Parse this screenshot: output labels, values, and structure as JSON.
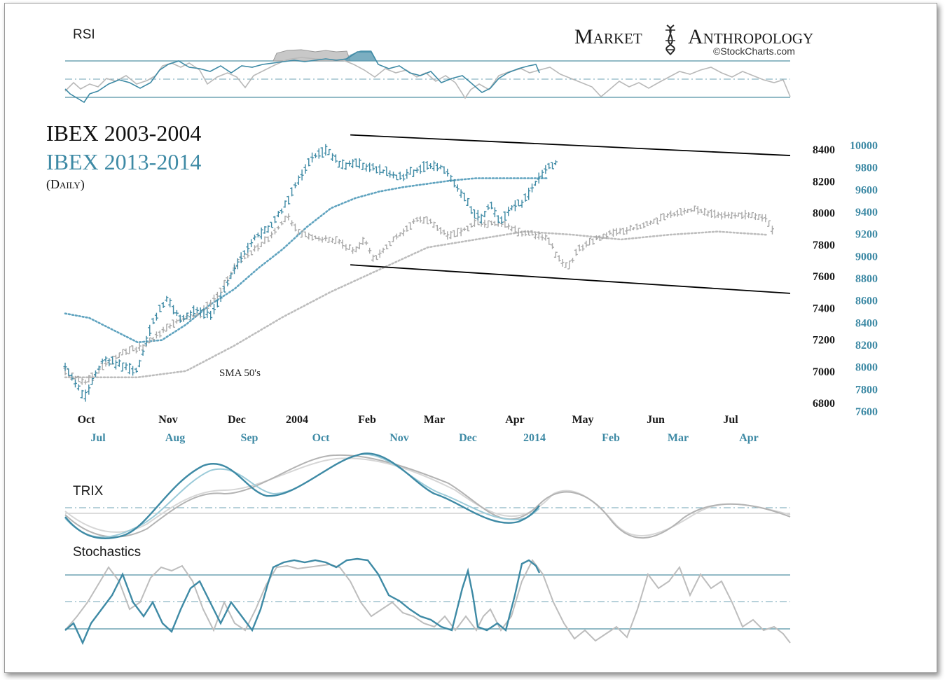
{
  "brand": {
    "name_part1": "Market",
    "name_part2": "Anthropology",
    "source": "©StockCharts.com",
    "icon": "dna-helix-icon"
  },
  "chart_data": {
    "type": "ohlc-overlay",
    "title_line1": "IBEX 2003-2004",
    "title_line2": "IBEX 2013-2014",
    "subtitle": "(Daily)",
    "annotation": "SMA 50's",
    "colors": {
      "series_2003": "#8c8c8c",
      "series_2013": "#3e8aa5",
      "trendline": "#000000",
      "grid": "#6fa3b4"
    },
    "x_axis_2003": [
      "Oct",
      "Nov",
      "Dec",
      "2004",
      "Feb",
      "Mar",
      "Apr",
      "May",
      "Jun",
      "Jul"
    ],
    "x_axis_2013": [
      "Jul",
      "Aug",
      "Sep",
      "Oct",
      "Nov",
      "Dec",
      "2014",
      "Feb",
      "Mar",
      "Apr"
    ],
    "y_axis_2003": [
      8400,
      8200,
      8000,
      7800,
      7600,
      7400,
      7200,
      7000,
      6800
    ],
    "y_axis_2013": [
      10000,
      9800,
      9600,
      9400,
      9200,
      9000,
      8800,
      8600,
      8400,
      8200,
      8000,
      7800,
      7600
    ],
    "series": [
      {
        "period": "2003-2004",
        "axis": "left",
        "close_points": [
          [
            0,
            7000
          ],
          [
            8,
            6920
          ],
          [
            16,
            7030
          ],
          [
            24,
            7120
          ],
          [
            32,
            7150
          ],
          [
            40,
            7250
          ],
          [
            48,
            7330
          ],
          [
            56,
            7360
          ],
          [
            64,
            7500
          ],
          [
            72,
            7700
          ],
          [
            80,
            7780
          ],
          [
            88,
            7900
          ],
          [
            92,
            7990
          ],
          [
            96,
            7880
          ],
          [
            104,
            7840
          ],
          [
            112,
            7820
          ],
          [
            120,
            7760
          ],
          [
            124,
            7830
          ],
          [
            128,
            7700
          ],
          [
            134,
            7800
          ],
          [
            140,
            7880
          ],
          [
            146,
            7960
          ],
          [
            152,
            7940
          ],
          [
            158,
            7850
          ],
          [
            164,
            7880
          ],
          [
            170,
            7940
          ],
          [
            176,
            7930
          ],
          [
            182,
            7920
          ],
          [
            186,
            7890
          ],
          [
            190,
            7870
          ],
          [
            196,
            7860
          ],
          [
            200,
            7830
          ],
          [
            204,
            7710
          ],
          [
            208,
            7650
          ],
          [
            212,
            7760
          ],
          [
            216,
            7800
          ],
          [
            220,
            7840
          ],
          [
            228,
            7880
          ],
          [
            236,
            7900
          ],
          [
            244,
            7950
          ],
          [
            252,
            7990
          ],
          [
            260,
            8020
          ],
          [
            268,
            7990
          ],
          [
            276,
            7980
          ],
          [
            284,
            7990
          ],
          [
            290,
            7960
          ],
          [
            294,
            7850
          ]
        ],
        "sma50_points": [
          [
            0,
            6960
          ],
          [
            30,
            6960
          ],
          [
            50,
            7000
          ],
          [
            70,
            7160
          ],
          [
            90,
            7340
          ],
          [
            110,
            7500
          ],
          [
            130,
            7640
          ],
          [
            150,
            7780
          ],
          [
            170,
            7830
          ],
          [
            190,
            7880
          ],
          [
            210,
            7860
          ],
          [
            230,
            7830
          ],
          [
            250,
            7860
          ],
          [
            270,
            7880
          ],
          [
            290,
            7860
          ]
        ]
      },
      {
        "period": "2013-2014",
        "axis": "right",
        "close_points": [
          [
            0,
            8000
          ],
          [
            8,
            7720
          ],
          [
            16,
            8080
          ],
          [
            24,
            8000
          ],
          [
            30,
            7960
          ],
          [
            36,
            8400
          ],
          [
            42,
            8620
          ],
          [
            48,
            8420
          ],
          [
            54,
            8520
          ],
          [
            60,
            8460
          ],
          [
            66,
            8700
          ],
          [
            72,
            8960
          ],
          [
            78,
            9160
          ],
          [
            84,
            9240
          ],
          [
            90,
            9420
          ],
          [
            96,
            9660
          ],
          [
            102,
            9880
          ],
          [
            108,
            9960
          ],
          [
            114,
            9820
          ],
          [
            120,
            9840
          ],
          [
            126,
            9800
          ],
          [
            132,
            9760
          ],
          [
            138,
            9700
          ],
          [
            144,
            9760
          ],
          [
            150,
            9820
          ],
          [
            156,
            9800
          ],
          [
            162,
            9620
          ],
          [
            168,
            9420
          ],
          [
            172,
            9340
          ],
          [
            176,
            9460
          ],
          [
            180,
            9300
          ],
          [
            184,
            9420
          ],
          [
            190,
            9500
          ],
          [
            196,
            9700
          ],
          [
            200,
            9800
          ],
          [
            204,
            9860
          ]
        ],
        "sma50_points": [
          [
            0,
            8480
          ],
          [
            10,
            8440
          ],
          [
            20,
            8330
          ],
          [
            30,
            8220
          ],
          [
            40,
            8240
          ],
          [
            50,
            8380
          ],
          [
            60,
            8560
          ],
          [
            70,
            8700
          ],
          [
            80,
            8890
          ],
          [
            90,
            9060
          ],
          [
            100,
            9260
          ],
          [
            110,
            9430
          ],
          [
            120,
            9520
          ],
          [
            130,
            9580
          ],
          [
            140,
            9620
          ],
          [
            150,
            9650
          ],
          [
            160,
            9680
          ],
          [
            170,
            9700
          ],
          [
            180,
            9700
          ],
          [
            190,
            9700
          ],
          [
            200,
            9700
          ]
        ]
      }
    ],
    "trendlines": [
      {
        "name": "upper channel",
        "x": [
          118,
          300
        ],
        "y": [
          8490,
          8360
        ]
      },
      {
        "name": "lower channel",
        "x": [
          118,
          300
        ],
        "y": [
          7670,
          7490
        ]
      }
    ],
    "panels": [
      {
        "name": "RSI",
        "label": "RSI"
      },
      {
        "name": "TRIX",
        "label": "TRIX"
      },
      {
        "name": "Stochastics",
        "label": "Stochastics"
      }
    ]
  }
}
